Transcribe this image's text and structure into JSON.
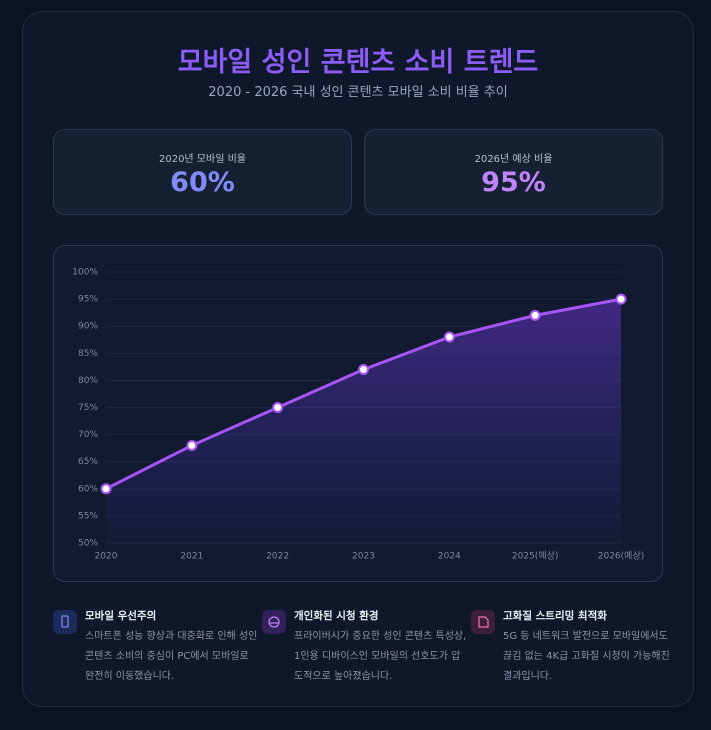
{
  "header": {
    "title": "모바일 성인 콘텐츠 소비 트렌드",
    "subtitle": "2020 - 2026 국내 성인 콘텐츠 모바일 소비 비율 추이"
  },
  "stats": [
    {
      "label": "2020년 모바일 비율",
      "value": "60%"
    },
    {
      "label": "2026년 예상 비율",
      "value": "95%"
    }
  ],
  "chart_data": {
    "type": "line",
    "categories": [
      "2020",
      "2021",
      "2022",
      "2023",
      "2024",
      "2025(예상)",
      "2026(예상)"
    ],
    "values": [
      60,
      68,
      75,
      82,
      88,
      92,
      95
    ],
    "color": "#a855f7",
    "grid": true,
    "ylim": [
      50,
      100
    ],
    "yticks": [
      {
        "value": 50,
        "label": "50%"
      },
      {
        "value": 55,
        "label": "55%"
      },
      {
        "value": 60,
        "label": "60%"
      },
      {
        "value": 65,
        "label": "65%"
      },
      {
        "value": 70,
        "label": "70%"
      },
      {
        "value": 75,
        "label": "75%"
      },
      {
        "value": 80,
        "label": "80%"
      },
      {
        "value": 85,
        "label": "85%"
      },
      {
        "value": 90,
        "label": "90%"
      },
      {
        "value": 95,
        "label": "95%"
      },
      {
        "value": 100,
        "label": "100%"
      }
    ]
  },
  "features": [
    {
      "title": "모바일 우선주의",
      "text": "스마트폰 성능 향상과 대중화로 인해 성인 콘텐츠 소비의 중심이 PC에서 모바일로 완전히 이동했습니다."
    },
    {
      "title": "개인화된 시청 환경",
      "text": "프라이버시가 중요한 성인 콘텐츠 특성상, 1인용 디바이스인 모바일의 선호도가 압도적으로 높아졌습니다."
    },
    {
      "title": "고화질 스트리밍 최적화",
      "text": "5G 등 네트워크 발전으로 모바일에서도 끊김 없는 4K급 고화질 시청이 가능해진 결과입니다."
    }
  ]
}
